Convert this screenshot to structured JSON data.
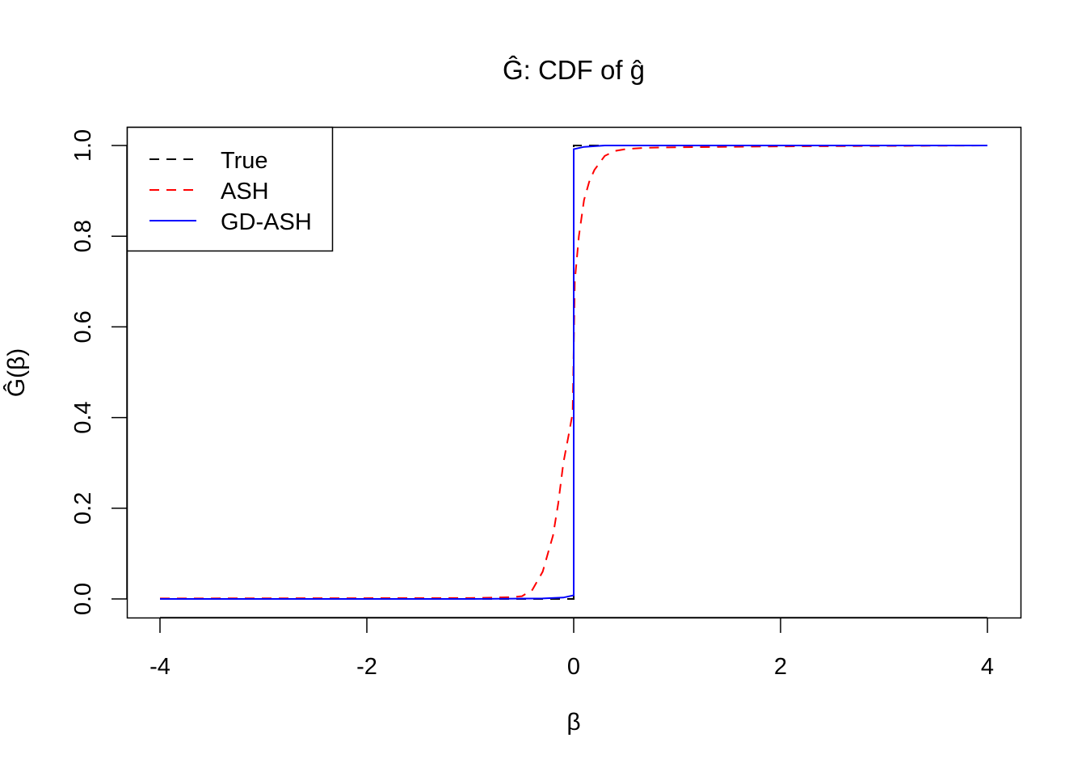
{
  "chart_data": {
    "type": "line",
    "title": "Ĝ: CDF of ĝ",
    "xlabel": "β",
    "ylabel": "Ĝ(β)",
    "xlim": [
      -4,
      4
    ],
    "ylim": [
      0,
      1
    ],
    "xticks": [
      "-4",
      "-2",
      "0",
      "2",
      "4"
    ],
    "xtick_values": [
      -4,
      -2,
      0,
      2,
      4
    ],
    "yticks": [
      "0.0",
      "0.2",
      "0.4",
      "0.6",
      "0.8",
      "1.0"
    ],
    "ytick_values": [
      0,
      0.2,
      0.4,
      0.6,
      0.8,
      1.0
    ],
    "grid": false,
    "legend_position": "top-left",
    "series": [
      {
        "name": "True",
        "color": "#000000",
        "dash": "dashed",
        "x": [
          -4,
          0,
          0,
          4
        ],
        "y": [
          0,
          0,
          1,
          1
        ]
      },
      {
        "name": "ASH",
        "color": "#ff0000",
        "dash": "dashed",
        "x": [
          -4,
          -1,
          -0.6,
          -0.5,
          -0.4,
          -0.3,
          -0.2,
          -0.15,
          -0.1,
          -0.05,
          -0.01,
          0,
          0.01,
          0.05,
          0.1,
          0.15,
          0.2,
          0.3,
          0.4,
          0.5,
          0.7,
          1,
          2,
          4
        ],
        "y": [
          0.001,
          0.002,
          0.004,
          0.006,
          0.02,
          0.06,
          0.14,
          0.21,
          0.3,
          0.36,
          0.41,
          0.55,
          0.7,
          0.8,
          0.88,
          0.92,
          0.946,
          0.977,
          0.988,
          0.992,
          0.995,
          0.996,
          0.998,
          1
        ]
      },
      {
        "name": "GD-ASH",
        "color": "#0000ff",
        "dash": "solid",
        "x": [
          -4,
          -1,
          -0.3,
          -0.1,
          0,
          0,
          0.1,
          0.3,
          1,
          4
        ],
        "y": [
          0,
          0,
          0.001,
          0.003,
          0.008,
          0.992,
          0.997,
          1,
          1,
          1
        ]
      }
    ]
  }
}
